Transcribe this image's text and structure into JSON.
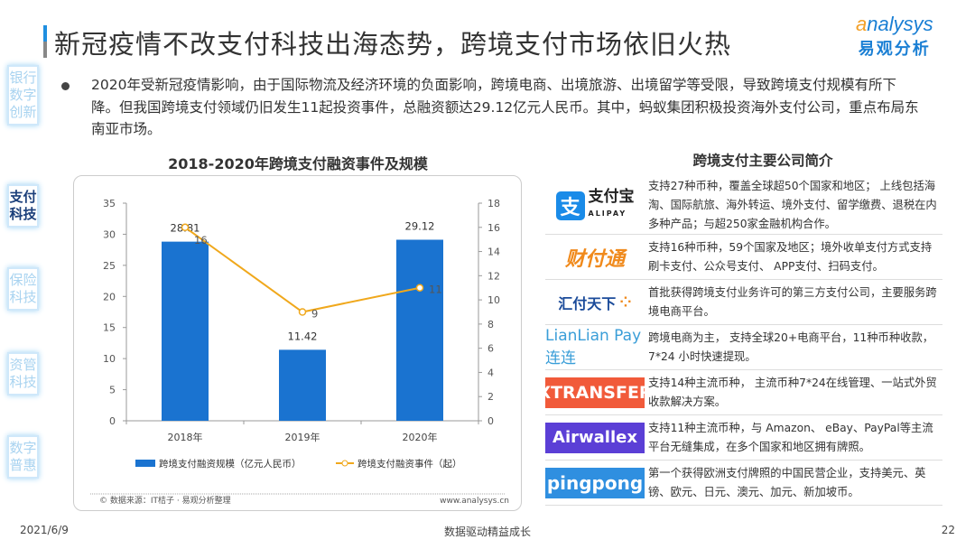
{
  "header": {
    "title": "新冠疫情不改支付科技出海态势，跨境支付市场依旧火热",
    "logo_en": "analysys",
    "logo_cn": "易观分析"
  },
  "sidebar": {
    "items": [
      {
        "label": "银行数字创新",
        "active": false
      },
      {
        "label": "支付科技",
        "active": true
      },
      {
        "label": "保险科技",
        "active": false
      },
      {
        "label": "资管科技",
        "active": false
      },
      {
        "label": "数字普惠",
        "active": false
      }
    ]
  },
  "intro": "2020年受新冠疫情影响，由于国际物流及经济环境的负面影响，跨境电商、出境旅游、出境留学等受限，导致跨境支付规模有所下降。但我国跨境支付领域仍旧发生11起投资事件，总融资额达29.12亿元人民币。其中，蚂蚁集团积极投资海外支付公司，重点布局东南亚市场。",
  "chart_data": {
    "type": "bar+line",
    "title": "2018-2020年跨境支付融资事件及规模",
    "categories": [
      "2018年",
      "2019年",
      "2020年"
    ],
    "series": [
      {
        "name": "跨境支付融资规模（亿元人民币）",
        "type": "bar",
        "axis": "left",
        "values": [
          28.81,
          11.42,
          29.12
        ],
        "labels": [
          "28.81",
          "11.42",
          "29.12"
        ],
        "color": "#1a73d0"
      },
      {
        "name": "跨境支付融资事件（起）",
        "type": "line",
        "axis": "right",
        "values": [
          16,
          9,
          11
        ],
        "labels": [
          "16",
          "9",
          "11"
        ],
        "color": "#f0a81c"
      }
    ],
    "y_left": {
      "range": [
        0,
        35
      ],
      "ticks": [
        "0",
        "5",
        "10",
        "15",
        "20",
        "25",
        "30",
        "35"
      ]
    },
    "y_right": {
      "range": [
        0,
        18
      ],
      "ticks": [
        "0",
        "2",
        "4",
        "6",
        "8",
        "10",
        "12",
        "14",
        "16",
        "18"
      ]
    },
    "grid": false,
    "legend": "bottom",
    "source": "© 数据来源：IT桔子 · 易观分析整理",
    "site": "www.analysys.cn"
  },
  "companies": {
    "title": "跨境支付主要公司简介",
    "items": [
      {
        "logo": "支付宝 ALIPAY",
        "desc": "支持27种币种，覆盖全球超50个国家和地区； 上线包括海淘、国际航旅、海外转运、境外支付、留学缴费、退税在内多种产品；与超250家金融机构合作。"
      },
      {
        "logo": "财付通",
        "desc": "支持16种币种，59个国家及地区；境外收单支付方式支持刷卡支付、公众号支付、 APP支付、扫码支付。"
      },
      {
        "logo": "汇付天下",
        "desc": "首批获得跨境支付业务许可的第三方支付公司，主要服务跨境电商平台。"
      },
      {
        "logo": "LianLian Pay 连连",
        "desc": "跨境电商为主， 支持全球20+电商平台，11种币种收款，7*24 小时快速提现。"
      },
      {
        "logo": "XTRANSFER",
        "desc": "支持14种主流币种， 主流币种7*24在线管理、一站式外贸收款解决方案。"
      },
      {
        "logo": "Airwallex",
        "desc": "支持11种主流币种，与 Amazon、 eBay、PayPal等主流平台无缝集成，在多个国家和地区拥有牌照。"
      },
      {
        "logo": "pingpong",
        "desc": "第一个获得欧洲支付牌照的中国民营企业，支持美元、英镑、欧元、日元、澳元、加元、新加坡币。"
      }
    ]
  },
  "footer": {
    "date": "2021/6/9",
    "slogan": "数据驱动精益成长",
    "page": "22"
  }
}
